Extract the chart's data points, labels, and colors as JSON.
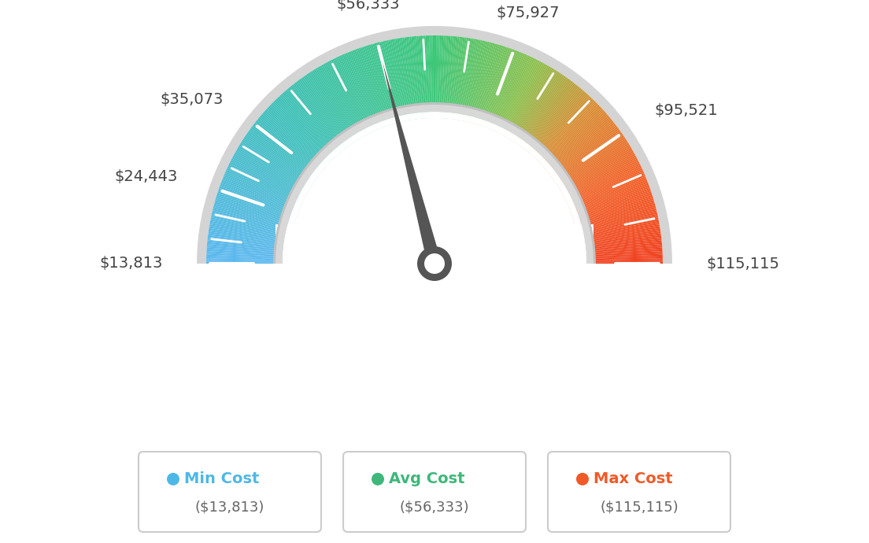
{
  "min_val": 13813,
  "max_val": 115115,
  "avg_val": 56333,
  "labels": [
    "$13,813",
    "$24,443",
    "$35,073",
    "$56,333",
    "$75,927",
    "$95,521",
    "$115,115"
  ],
  "label_values": [
    13813,
    24443,
    35073,
    56333,
    75927,
    95521,
    115115
  ],
  "legend_items": [
    {
      "label": "Min Cost",
      "value": "($13,813)",
      "color": "#4db8e8"
    },
    {
      "label": "Avg Cost",
      "value": "($56,333)",
      "color": "#3db87a"
    },
    {
      "label": "Max Cost",
      "value": "($115,115)",
      "color": "#f05a28"
    }
  ],
  "needle_value": 56333,
  "background_color": "#ffffff",
  "gauge_colors": [
    [
      0.0,
      "#5bc8f0"
    ],
    [
      0.15,
      "#4ab8d8"
    ],
    [
      0.3,
      "#3ec8a0"
    ],
    [
      0.45,
      "#3dc87a"
    ],
    [
      0.5,
      "#3dcc70"
    ],
    [
      0.6,
      "#6dc85a"
    ],
    [
      0.7,
      "#c8a030"
    ],
    [
      0.8,
      "#e87030"
    ],
    [
      0.9,
      "#f05828"
    ],
    [
      1.0,
      "#f04020"
    ]
  ],
  "tick_color": "#ffffff",
  "needle_color": "#555555"
}
